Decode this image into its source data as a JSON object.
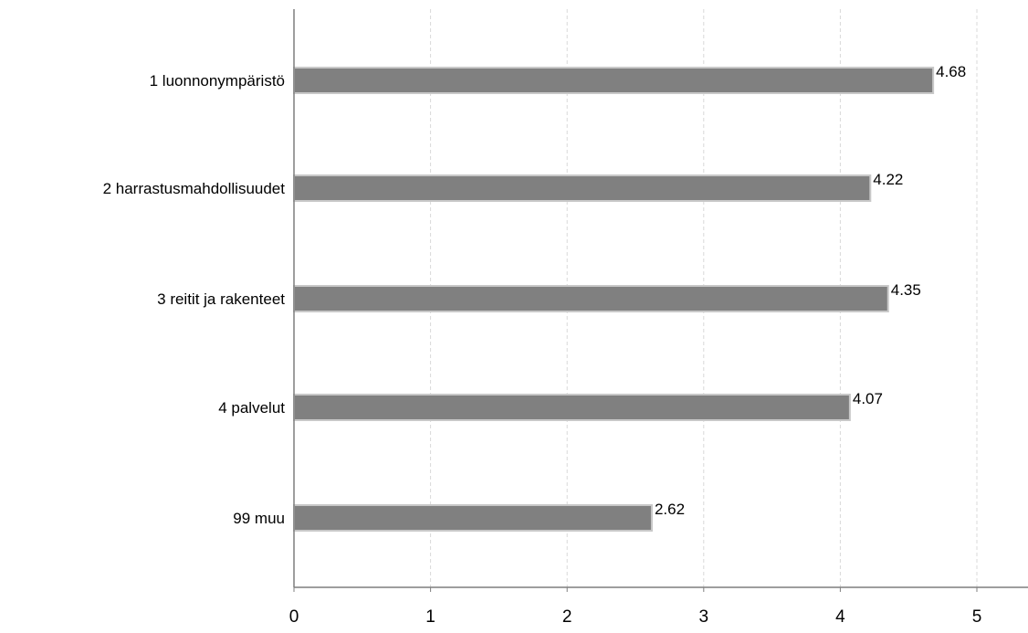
{
  "chart_data": {
    "type": "bar",
    "orientation": "horizontal",
    "categories": [
      "1 luonnonympäristö",
      "2 harrastusmahdollisuudet",
      "3 reitit ja rakenteet",
      "4 palvelut",
      "99 muu"
    ],
    "values": [
      4.68,
      4.22,
      4.35,
      4.07,
      2.62
    ],
    "value_labels": [
      "4.68",
      "4.22",
      "4.35",
      "4.07",
      "2.62"
    ],
    "xticks": [
      "0",
      "1",
      "2",
      "3",
      "4",
      "5"
    ],
    "xlim": [
      0,
      5.35
    ],
    "grid": "vertical dashed",
    "bar_color": "#808080",
    "title": "",
    "xlabel": "",
    "ylabel": ""
  }
}
